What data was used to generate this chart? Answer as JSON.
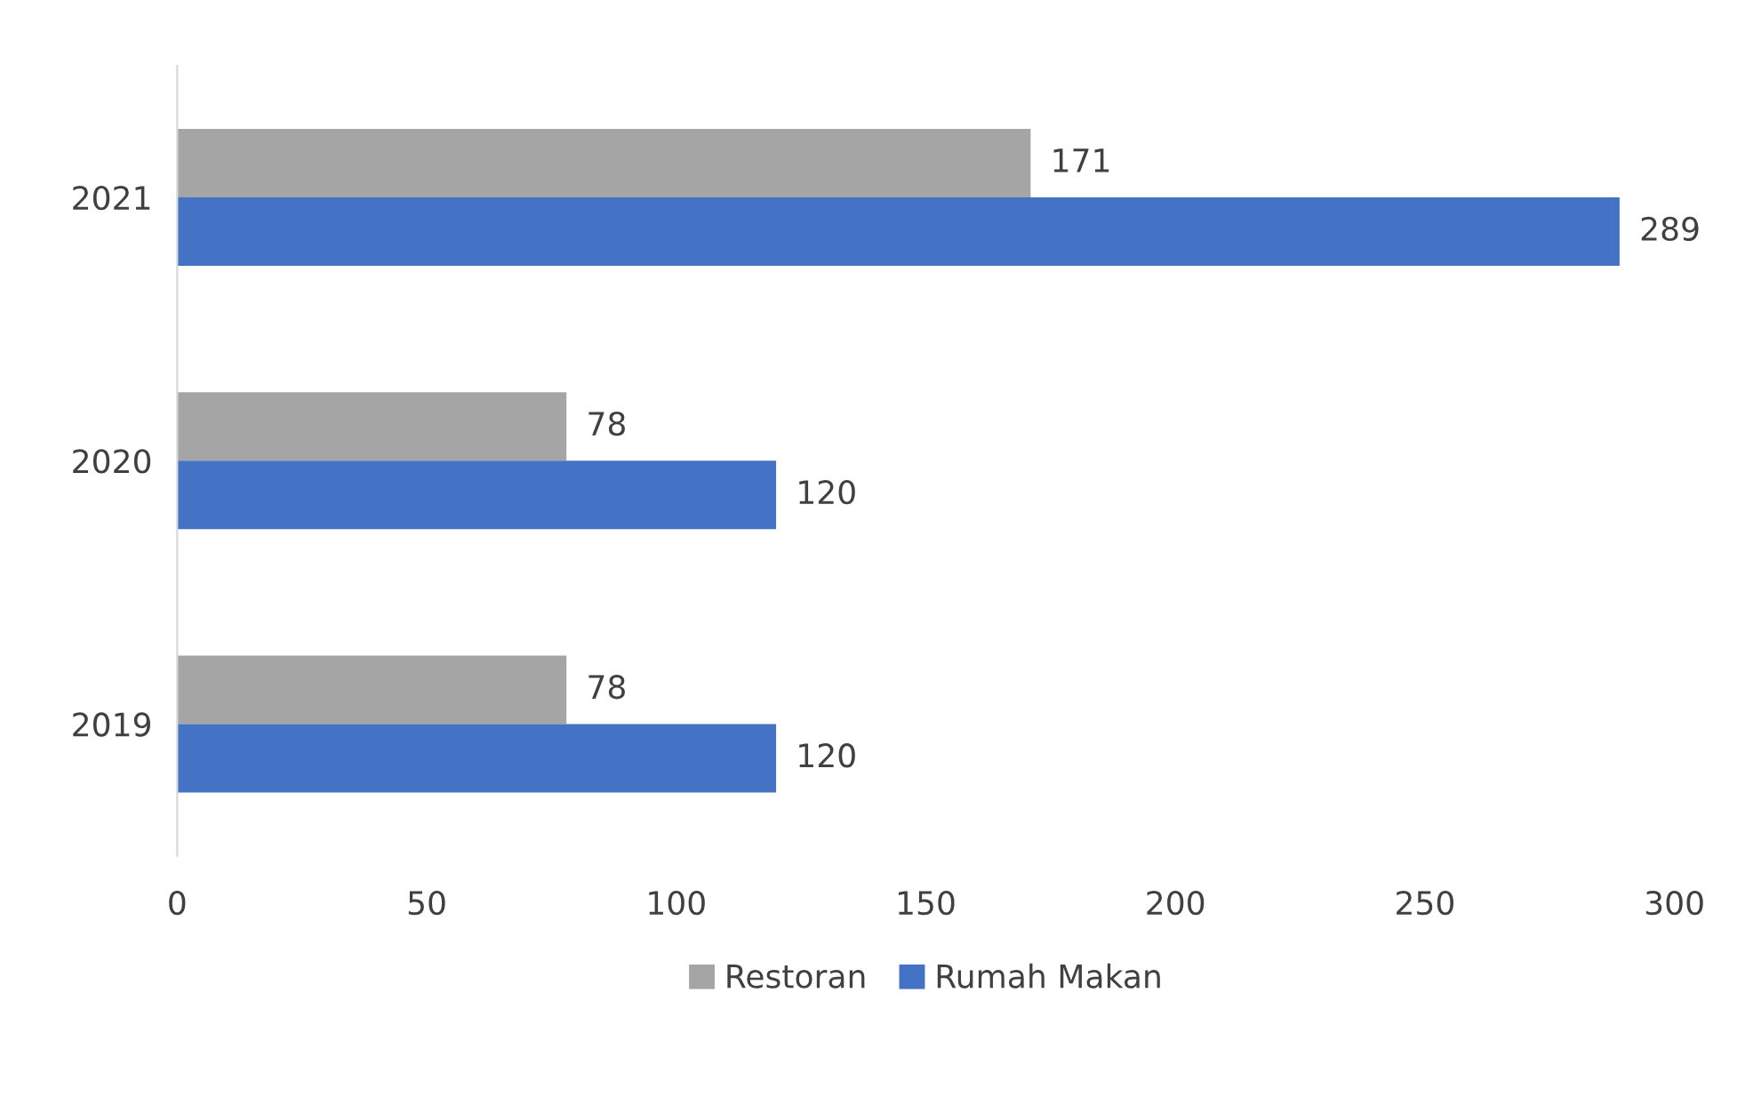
{
  "chart_data": {
    "type": "bar",
    "orientation": "horizontal",
    "categories": [
      "2021",
      "2020",
      "2019"
    ],
    "series": [
      {
        "name": "Restoran",
        "color": "#a5a5a5",
        "values": [
          171,
          78,
          78
        ]
      },
      {
        "name": "Rumah Makan",
        "color": "#4472c4",
        "values": [
          289,
          120,
          120
        ]
      }
    ],
    "xlim": [
      0,
      300
    ],
    "xticks": [
      0,
      50,
      100,
      150,
      200,
      250,
      300
    ],
    "grid": false,
    "legend": "bottom",
    "data_labels": true
  }
}
